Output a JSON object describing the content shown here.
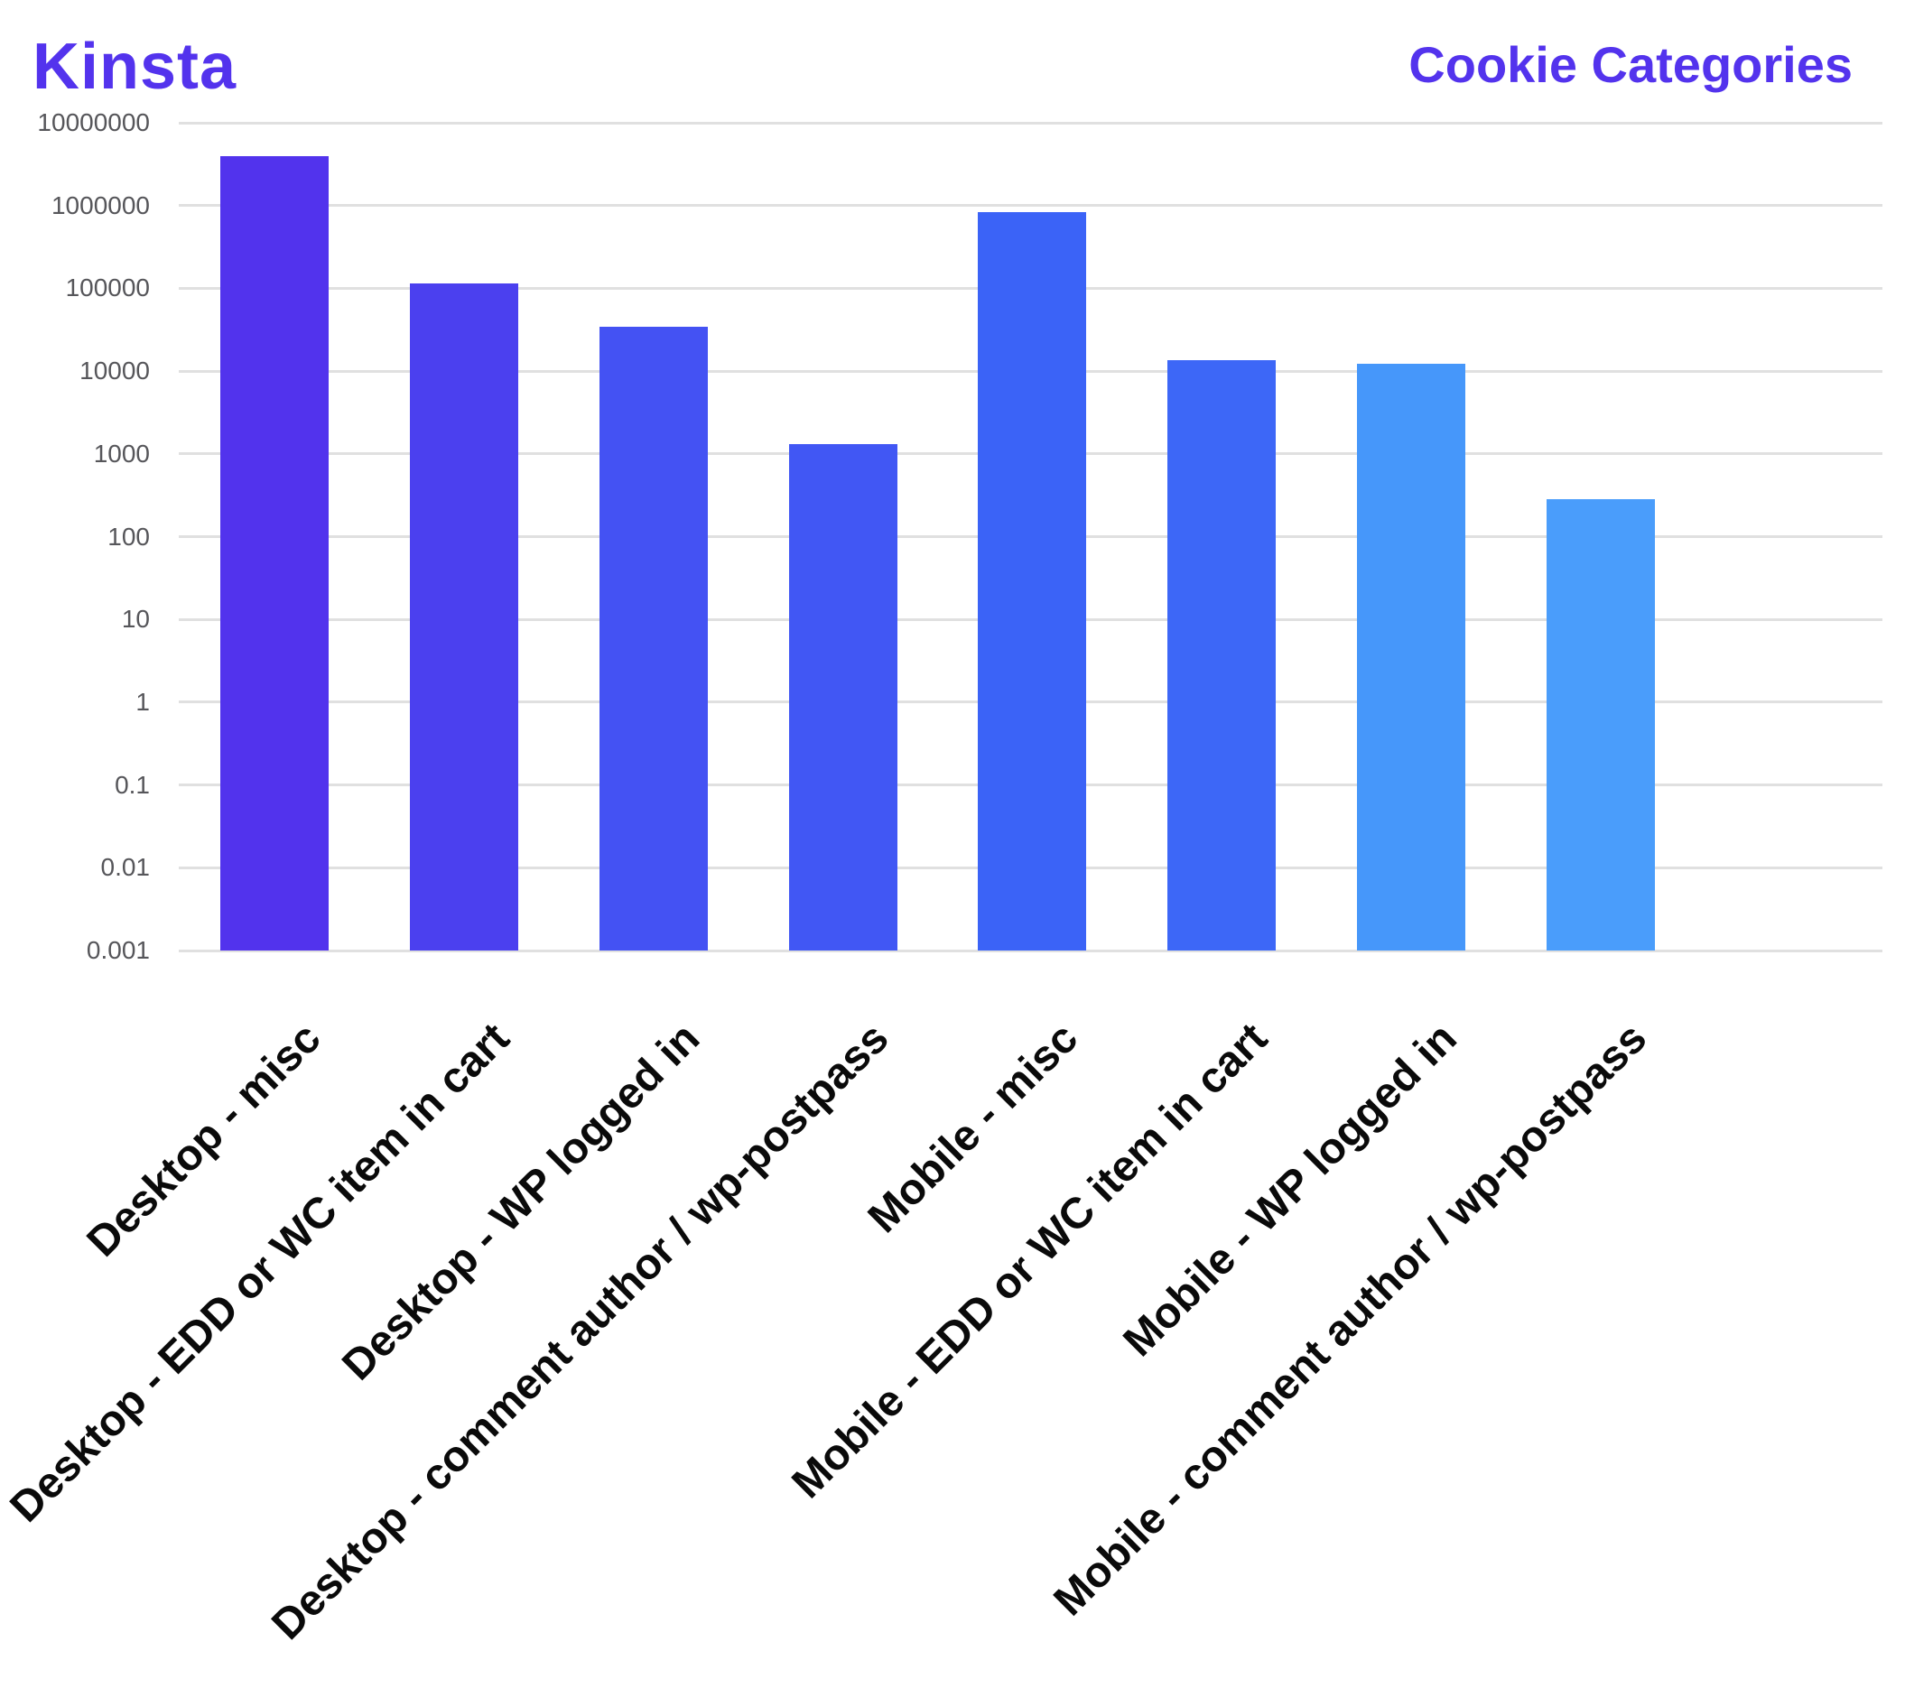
{
  "logo": {
    "text": "Kinsta",
    "color": "#5333ed"
  },
  "title": {
    "text": "Cookie Categories",
    "color": "#5333ed"
  },
  "chart_data": {
    "type": "bar",
    "title": "Cookie Categories",
    "scale": "log",
    "grid": true,
    "legend": false,
    "ylim": [
      0.001,
      10000000
    ],
    "y_ticks": [
      "10000000",
      "1000000",
      "100000",
      "10000",
      "1000",
      "100",
      "10",
      "1",
      "0.1",
      "0.01",
      "0.001"
    ],
    "categories": [
      "Desktop - misc",
      "Desktop - EDD or WC item in cart",
      "Desktop - WP logged in",
      "Desktop - comment author / wp-postpass",
      "Mobile - misc",
      "Mobile - EDD or WC item in cart",
      "Mobile - WP logged in",
      "Mobile - comment author / wp-postpass"
    ],
    "values": [
      3900000,
      115000,
      34000,
      1320,
      830000,
      13600,
      12200,
      280
    ],
    "bar_colors": [
      "#5233ed",
      "#4b40ef",
      "#4452f3",
      "#4157f4",
      "#3b63f7",
      "#3d67f7",
      "#4697fa",
      "#4a9dfb"
    ],
    "gridline_color": "#e0e0e0",
    "tick_label_color": "#56565a",
    "category_label_color": "#0a0a0a"
  }
}
